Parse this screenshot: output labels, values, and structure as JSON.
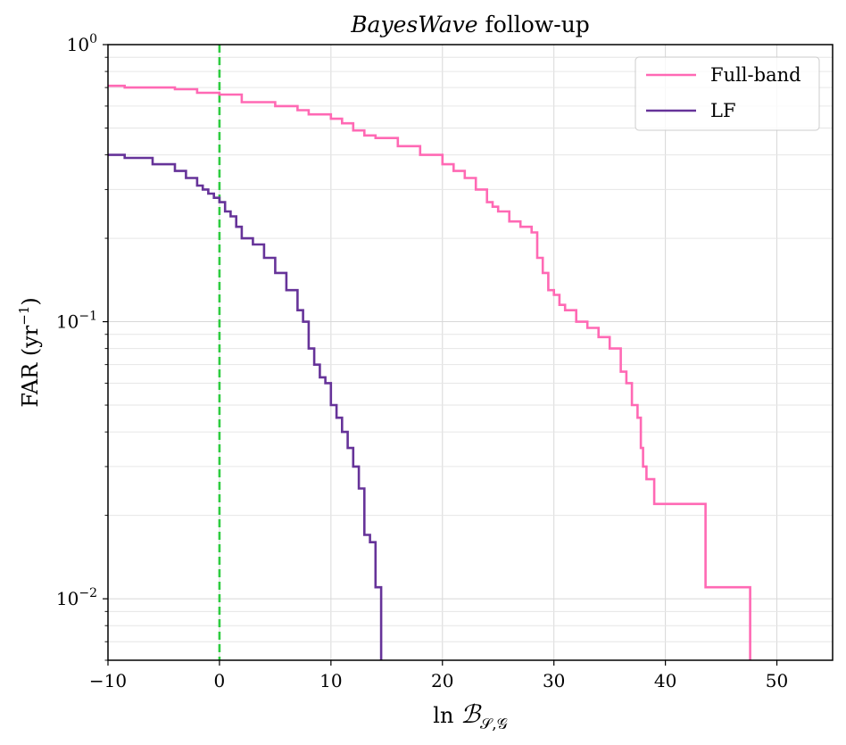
{
  "chart_data": {
    "type": "line",
    "title_italic": "BayesWave",
    "title_rest": " follow-up",
    "xlabel_prefix": "ln ",
    "xlabel_symbol": "ℬ",
    "xlabel_subscript": "𝒮,𝒢",
    "ylabel_main": "FAR (yr",
    "ylabel_sup": "−1",
    "ylabel_end": ")",
    "xlim": [
      -10,
      55
    ],
    "ylim": [
      0.006,
      1.0
    ],
    "yscale": "log",
    "grid": true,
    "legend_position": "top-right",
    "x_ticks": [
      {
        "value": -10,
        "label": "−10"
      },
      {
        "value": 0,
        "label": "0"
      },
      {
        "value": 10,
        "label": "10"
      },
      {
        "value": 20,
        "label": "20"
      },
      {
        "value": 30,
        "label": "30"
      },
      {
        "value": 40,
        "label": "40"
      },
      {
        "value": 50,
        "label": "50"
      }
    ],
    "y_ticks": [
      {
        "value": 1.0,
        "base": "10",
        "exp": "0"
      },
      {
        "value": 0.1,
        "base": "10",
        "exp": "−1"
      },
      {
        "value": 0.01,
        "base": "10",
        "exp": "−2"
      }
    ],
    "vline": {
      "x": 0,
      "color": "#2ecc40"
    },
    "series": [
      {
        "name": "Full-band",
        "color": "#ff69b4",
        "x": [
          -10,
          -8.5,
          -4,
          -2,
          0,
          2,
          5,
          7,
          8,
          10,
          11,
          12,
          13,
          14,
          16,
          18,
          20,
          21,
          22,
          23,
          24,
          24.5,
          25,
          26,
          27,
          28,
          28.5,
          29,
          29.5,
          30,
          30.5,
          31,
          32,
          33,
          34,
          35,
          36,
          36.5,
          37,
          37.5,
          37.8,
          38,
          38.3,
          39,
          39.5,
          43.6,
          47.6
        ],
        "y": [
          0.71,
          0.7,
          0.69,
          0.67,
          0.66,
          0.62,
          0.6,
          0.58,
          0.56,
          0.54,
          0.52,
          0.49,
          0.47,
          0.46,
          0.43,
          0.4,
          0.37,
          0.35,
          0.33,
          0.3,
          0.27,
          0.26,
          0.25,
          0.23,
          0.22,
          0.21,
          0.17,
          0.15,
          0.13,
          0.125,
          0.115,
          0.11,
          0.1,
          0.095,
          0.088,
          0.08,
          0.066,
          0.06,
          0.05,
          0.045,
          0.035,
          0.03,
          0.027,
          0.022,
          0.022,
          0.011,
          0.006
        ]
      },
      {
        "name": "LF",
        "color": "#663399",
        "x": [
          -10,
          -8.5,
          -6,
          -4,
          -3,
          -2,
          -1.5,
          -1,
          -0.5,
          0,
          0.5,
          1,
          1.5,
          2,
          3,
          4,
          5,
          6,
          7,
          7.5,
          8,
          8.5,
          9,
          9.5,
          10,
          10.5,
          11,
          11.5,
          12,
          12.5,
          13,
          13.5,
          14,
          14.5
        ],
        "y": [
          0.4,
          0.39,
          0.37,
          0.35,
          0.33,
          0.31,
          0.3,
          0.29,
          0.28,
          0.27,
          0.25,
          0.24,
          0.22,
          0.2,
          0.19,
          0.17,
          0.15,
          0.13,
          0.11,
          0.1,
          0.08,
          0.07,
          0.063,
          0.06,
          0.05,
          0.045,
          0.04,
          0.035,
          0.03,
          0.025,
          0.017,
          0.016,
          0.011,
          0.006
        ]
      }
    ]
  }
}
